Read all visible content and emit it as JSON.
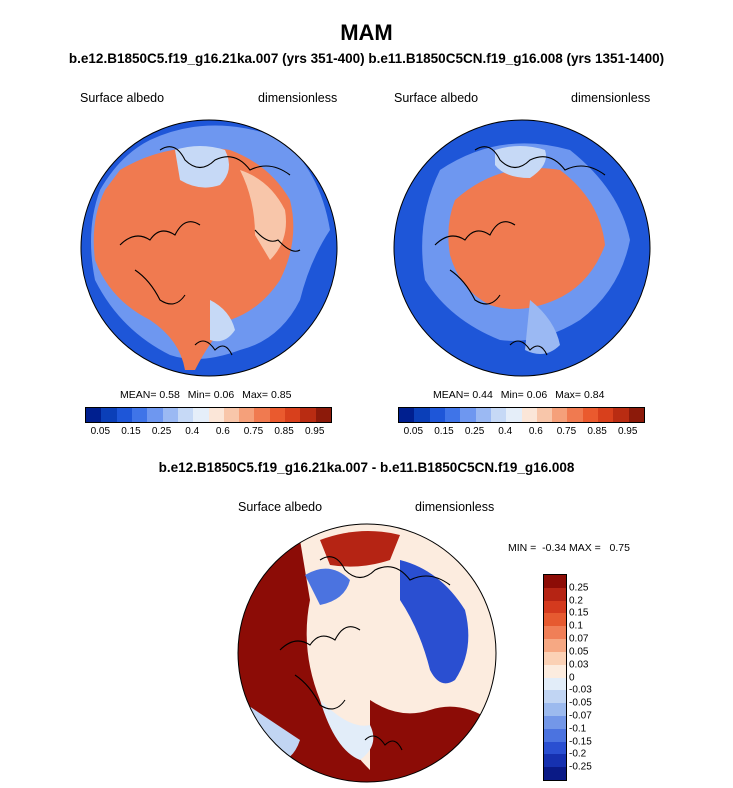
{
  "figure": {
    "title": "MAM",
    "subtitle": "b.e12.B1850C5.f19_g16.21ka.007 (yrs 351-400) b.e11.B1850C5CN.f19_g16.008 (yrs 1351-1400)",
    "difference_title": "b.e12.B1850C5.f19_g16.21ka.007 - b.e11.B1850C5CN.f19_g16.008"
  },
  "panels": [
    {
      "variable": "Surface albedo",
      "units": "dimensionless",
      "mean_label": "MEAN=",
      "mean": "0.58",
      "min_label": "Min=",
      "min": "0.06",
      "max_label": "Max=",
      "max": "0.85"
    },
    {
      "variable": "Surface albedo",
      "units": "dimensionless",
      "mean_label": "MEAN=",
      "mean": "0.44",
      "min_label": "Min=",
      "min": "0.06",
      "max_label": "Max=",
      "max": "0.84"
    }
  ],
  "difference_panel": {
    "variable": "Surface albedo",
    "units": "dimensionless",
    "minmax": "MIN =  -0.34 MAX =   0.75"
  },
  "colorbar_abs": {
    "colors": [
      "#001f8f",
      "#0b3fb8",
      "#1e56d8",
      "#3f74e8",
      "#6e97f0",
      "#9bb9f3",
      "#c6d9f6",
      "#e5eef9",
      "#fbe6d8",
      "#f8c6aa",
      "#f5a07a",
      "#f07a50",
      "#ea5a2e",
      "#d8401c",
      "#b92c12",
      "#8c1a0a"
    ],
    "ticks": [
      "0.05",
      "0.15",
      "0.25",
      "0.4",
      "0.6",
      "0.75",
      "0.85",
      "0.95"
    ]
  },
  "colorbar_diff": {
    "colors": [
      "#8c0c06",
      "#b52414",
      "#d43a1e",
      "#e65a30",
      "#f07f57",
      "#f6a883",
      "#fbd1b5",
      "#fcecdf",
      "#e2edf9",
      "#c1d5f3",
      "#9cbaee",
      "#7397e8",
      "#4b73e0",
      "#2a4fd1",
      "#1631b0",
      "#0a1a86"
    ],
    "ticks": [
      "0.25",
      "0.2",
      "0.15",
      "0.1",
      "0.07",
      "0.05",
      "0.03",
      "0",
      "-0.03",
      "-0.05",
      "-0.07",
      "-0.1",
      "-0.15",
      "-0.2",
      "-0.25"
    ]
  }
}
